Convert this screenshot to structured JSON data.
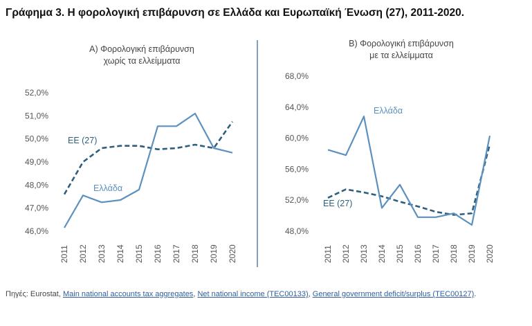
{
  "title": "Γράφημα 3. Η φορολογική επιβάρυνση σε Ελλάδα και Ευρωπαϊκή Ένωση (27), 2011-2020.",
  "colors": {
    "greece_line": "#5b90bf",
    "eu_line": "#2f5f7f",
    "axis_text": "#555555",
    "title_text": "#444444",
    "divider": "#2f5f9e",
    "link": "#2f5f9e"
  },
  "chart_data": [
    {
      "type": "line",
      "title": "Α) Φορολογική επιβάρυνση χωρίς τα ελλείμματα",
      "title_lines": [
        "Α) Φορολογική επιβάρυνση",
        "χωρίς τα ελλείμματα"
      ],
      "x": [
        "2011",
        "2012",
        "2013",
        "2014",
        "2015",
        "2016",
        "2017",
        "2018",
        "2019",
        "2020"
      ],
      "ylim": [
        46.0,
        52.0
      ],
      "yticks": [
        46.0,
        47.0,
        48.0,
        49.0,
        50.0,
        51.0,
        52.0
      ],
      "ytick_labels": [
        "46,0%",
        "47,0%",
        "48,0%",
        "49,0%",
        "50,0%",
        "51,0%",
        "52,0%"
      ],
      "grid": false,
      "series": [
        {
          "name": "Ελλάδα",
          "style": "solid",
          "values": [
            46.15,
            47.55,
            47.25,
            47.35,
            47.8,
            50.55,
            50.55,
            51.1,
            49.6,
            49.4
          ]
        },
        {
          "name": "ΕΕ (27)",
          "style": "dashed",
          "values": [
            47.6,
            49.0,
            49.6,
            49.7,
            49.7,
            49.55,
            49.6,
            49.75,
            49.6,
            50.75
          ]
        }
      ]
    },
    {
      "type": "line",
      "title": "Β) Φορολογική επιβάρυνση με τα ελλείμματα",
      "title_lines": [
        "Β) Φορολογική επιβάρυνση",
        "με τα ελλείμματα"
      ],
      "x": [
        "2011",
        "2012",
        "2013",
        "2014",
        "2015",
        "2016",
        "2017",
        "2018",
        "2019",
        "2020"
      ],
      "ylim": [
        48.0,
        68.0
      ],
      "yticks": [
        48.0,
        52.0,
        56.0,
        60.0,
        64.0,
        68.0
      ],
      "ytick_labels": [
        "48,0%",
        "52,0%",
        "56,0%",
        "60,0%",
        "64,0%",
        "68,0%"
      ],
      "grid": false,
      "series": [
        {
          "name": "Ελλάδα",
          "style": "solid",
          "values": [
            58.5,
            57.8,
            62.8,
            51.0,
            54.0,
            49.8,
            49.8,
            50.3,
            48.8,
            60.3
          ]
        },
        {
          "name": "ΕΕ (27)",
          "style": "dashed",
          "values": [
            52.3,
            53.4,
            53.0,
            52.5,
            51.8,
            51.2,
            50.5,
            50.1,
            50.3,
            59.2
          ]
        }
      ]
    }
  ],
  "sources": {
    "prefix": "Πηγές: Eurostat, ",
    "links": [
      {
        "text": "Main national accounts tax aggregates",
        "after": ", "
      },
      {
        "text": "Net national income (TEC00133)",
        "after": ", "
      },
      {
        "text": "General government deficit/surplus (TEC00127)",
        "after": "."
      }
    ]
  }
}
